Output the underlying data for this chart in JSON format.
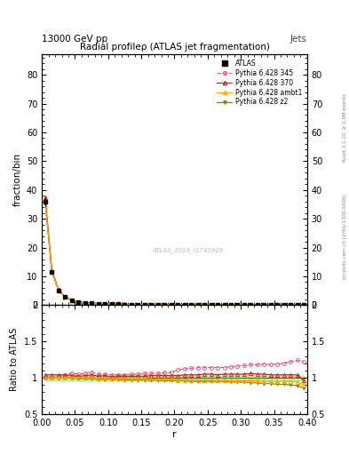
{
  "title": "Radial profileρ (ATLAS jet fragmentation)",
  "top_left_label": "13000 GeV pp",
  "top_right_label": "Jets",
  "right_label_top": "Rivet 3.1.10, ≥ 2.9M events",
  "right_label_bottom": "mcplots.cern.ch [arXiv:1306.3436]",
  "watermark": "ATLAS_2019_I1740909",
  "ylabel_main": "fraction/bin",
  "ylabel_ratio": "Ratio to ATLAS",
  "xlabel": "r",
  "ylim_main": [
    0,
    87
  ],
  "ylim_ratio": [
    0.5,
    2.0
  ],
  "xlim": [
    0.0,
    0.4
  ],
  "yticks_main": [
    0,
    10,
    20,
    30,
    40,
    50,
    60,
    70,
    80
  ],
  "yticks_ratio": [
    0.5,
    1.0,
    1.5,
    2.0
  ],
  "r_values": [
    0.005,
    0.015,
    0.025,
    0.035,
    0.045,
    0.055,
    0.065,
    0.075,
    0.085,
    0.095,
    0.105,
    0.115,
    0.125,
    0.135,
    0.145,
    0.155,
    0.165,
    0.175,
    0.185,
    0.195,
    0.205,
    0.215,
    0.225,
    0.235,
    0.245,
    0.255,
    0.265,
    0.275,
    0.285,
    0.295,
    0.305,
    0.315,
    0.325,
    0.335,
    0.345,
    0.355,
    0.365,
    0.375,
    0.385,
    0.395
  ],
  "atlas_y": [
    36.0,
    11.5,
    5.2,
    2.8,
    1.7,
    1.1,
    0.8,
    0.6,
    0.5,
    0.4,
    0.35,
    0.3,
    0.26,
    0.23,
    0.21,
    0.19,
    0.18,
    0.17,
    0.16,
    0.15,
    0.14,
    0.13,
    0.12,
    0.11,
    0.1,
    0.095,
    0.09,
    0.085,
    0.08,
    0.075,
    0.07,
    0.065,
    0.062,
    0.058,
    0.055,
    0.052,
    0.048,
    0.044,
    0.04,
    0.036
  ],
  "atlas_err": [
    1.5,
    0.5,
    0.2,
    0.12,
    0.08,
    0.05,
    0.04,
    0.03,
    0.025,
    0.02,
    0.018,
    0.015,
    0.013,
    0.012,
    0.011,
    0.01,
    0.009,
    0.009,
    0.008,
    0.008,
    0.007,
    0.007,
    0.006,
    0.006,
    0.006,
    0.005,
    0.005,
    0.005,
    0.005,
    0.004,
    0.004,
    0.004,
    0.004,
    0.003,
    0.003,
    0.003,
    0.003,
    0.003,
    0.003,
    0.003
  ],
  "p345_ratio": [
    1.01,
    1.0,
    1.02,
    1.04,
    1.06,
    1.05,
    1.06,
    1.08,
    1.05,
    1.05,
    1.04,
    1.04,
    1.04,
    1.05,
    1.05,
    1.06,
    1.06,
    1.06,
    1.07,
    1.07,
    1.11,
    1.12,
    1.13,
    1.14,
    1.14,
    1.14,
    1.14,
    1.14,
    1.15,
    1.16,
    1.17,
    1.18,
    1.18,
    1.19,
    1.18,
    1.19,
    1.2,
    1.22,
    1.24,
    1.22
  ],
  "p370_ratio": [
    1.04,
    1.04,
    1.04,
    1.04,
    1.03,
    1.02,
    1.03,
    1.04,
    1.02,
    1.03,
    1.01,
    1.02,
    1.02,
    1.02,
    1.02,
    1.02,
    1.03,
    1.03,
    1.03,
    1.03,
    1.03,
    1.04,
    1.04,
    1.04,
    1.05,
    1.05,
    1.04,
    1.05,
    1.05,
    1.05,
    1.05,
    1.06,
    1.05,
    1.05,
    1.04,
    1.04,
    1.04,
    1.04,
    1.04,
    0.96
  ],
  "pambt1_ratio": [
    1.0,
    1.0,
    1.0,
    1.0,
    1.0,
    1.0,
    1.0,
    1.0,
    0.99,
    0.99,
    0.99,
    0.99,
    0.99,
    0.99,
    0.99,
    0.99,
    0.98,
    0.98,
    0.98,
    0.98,
    0.97,
    0.97,
    0.97,
    0.97,
    0.97,
    0.97,
    0.96,
    0.96,
    0.96,
    0.96,
    0.96,
    0.96,
    0.96,
    0.95,
    0.95,
    0.95,
    0.95,
    0.95,
    0.94,
    0.9
  ],
  "pz2_ratio": [
    1.0,
    1.0,
    1.0,
    1.0,
    1.0,
    0.99,
    0.99,
    0.99,
    0.98,
    0.98,
    0.98,
    0.98,
    0.97,
    0.97,
    0.97,
    0.97,
    0.97,
    0.97,
    0.96,
    0.96,
    0.96,
    0.96,
    0.95,
    0.95,
    0.95,
    0.95,
    0.95,
    0.95,
    0.94,
    0.94,
    0.94,
    0.93,
    0.93,
    0.92,
    0.92,
    0.91,
    0.91,
    0.9,
    0.89,
    0.86
  ],
  "color_atlas": "#000000",
  "color_p345": "#e06080",
  "color_p370": "#cc2222",
  "color_pambt1": "#ffaa00",
  "color_pz2": "#888800",
  "legend_entries": [
    "ATLAS",
    "Pythia 6.428 345",
    "Pythia 6.428 370",
    "Pythia 6.428 ambt1",
    "Pythia 6.428 z2"
  ]
}
